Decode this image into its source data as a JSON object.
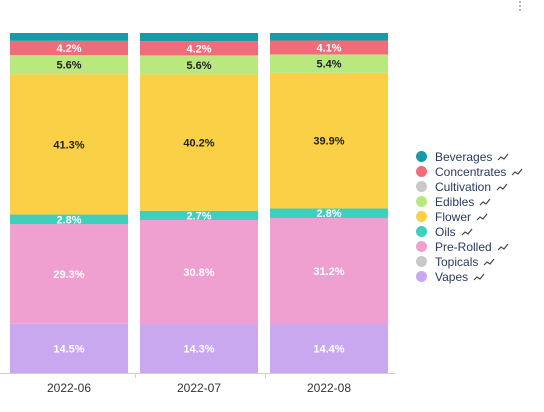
{
  "chart_data": {
    "type": "bar",
    "stacked": true,
    "normalized": true,
    "categories": [
      "2022-06",
      "2022-07",
      "2022-08"
    ],
    "ylim": [
      0,
      100
    ],
    "grid": false,
    "legend_position": "right",
    "series": [
      {
        "name": "Vapes",
        "color": "#c9a8f0",
        "values": [
          14.5,
          14.3,
          14.4
        ],
        "labels": [
          "14.5%",
          "14.3%",
          "14.4%"
        ]
      },
      {
        "name": "Topicals",
        "color": "#c8c8c8",
        "values": [
          0,
          0,
          0
        ],
        "labels": [
          "",
          "",
          ""
        ]
      },
      {
        "name": "Pre-Rolled",
        "color": "#f0a0d0",
        "values": [
          29.3,
          30.8,
          31.2
        ],
        "labels": [
          "29.3%",
          "30.8%",
          "31.2%"
        ]
      },
      {
        "name": "Oils",
        "color": "#3ecfbd",
        "values": [
          2.8,
          2.7,
          2.8
        ],
        "labels": [
          "2.8%",
          "2.7%",
          "2.8%"
        ]
      },
      {
        "name": "Flower",
        "color": "#fad146",
        "values": [
          41.3,
          40.2,
          39.9
        ],
        "labels": [
          "41.3%",
          "40.2%",
          "39.9%"
        ]
      },
      {
        "name": "Edibles",
        "color": "#b8e87e",
        "values": [
          5.6,
          5.6,
          5.4
        ],
        "labels": [
          "5.6%",
          "5.6%",
          "5.4%"
        ]
      },
      {
        "name": "Cultivation",
        "color": "#c8c8c8",
        "values": [
          0,
          0,
          0
        ],
        "labels": [
          "",
          "",
          ""
        ]
      },
      {
        "name": "Concentrates",
        "color": "#f06c7a",
        "values": [
          4.2,
          4.2,
          4.1
        ],
        "labels": [
          "4.2%",
          "4.2%",
          "4.1%"
        ]
      },
      {
        "name": "Beverages",
        "color": "#1a9aa8",
        "values": [
          2.3,
          2.4,
          2.2
        ],
        "labels": [
          "",
          "",
          ""
        ]
      }
    ],
    "label_colors": {
      "Vapes": "#ffffff",
      "Pre-Rolled": "#ffffff",
      "Oils": "#ffffff",
      "Flower": "#222222",
      "Edibles": "#222222",
      "Concentrates": "#ffffff"
    }
  },
  "legend": {
    "items": [
      {
        "label": "Beverages",
        "color": "#1a9aa8"
      },
      {
        "label": "Concentrates",
        "color": "#f06c7a"
      },
      {
        "label": "Cultivation",
        "color": "#c8c8c8"
      },
      {
        "label": "Edibles",
        "color": "#b8e87e"
      },
      {
        "label": "Flower",
        "color": "#fad146"
      },
      {
        "label": "Oils",
        "color": "#3ecfbd"
      },
      {
        "label": "Pre-Rolled",
        "color": "#f0a0d0"
      },
      {
        "label": "Topicals",
        "color": "#c8c8c8"
      },
      {
        "label": "Vapes",
        "color": "#c9a8f0"
      }
    ],
    "trend_icon": "trend-line-icon"
  },
  "menu_icon": "more-vert-icon"
}
